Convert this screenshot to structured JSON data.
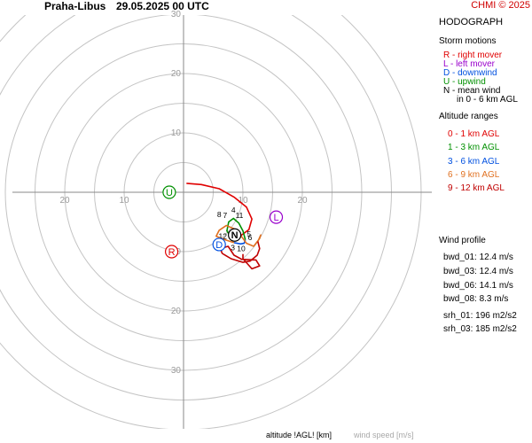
{
  "header": {
    "station": "Praha-Libus",
    "datetime": "29.05.2025 00 UTC",
    "credit": "CHMI © 2025"
  },
  "legend": {
    "title": "HODOGRAPH",
    "storm_motions": {
      "title": "Storm motions",
      "items": [
        {
          "text": "R - right mover",
          "color": "#e00000"
        },
        {
          "text": "L - left mover",
          "color": "#9900cc"
        },
        {
          "text": "D - downwind",
          "color": "#0050e0"
        },
        {
          "text": "U - upwind",
          "color": "#009000"
        },
        {
          "text": "N - mean wind",
          "color": "#000000"
        },
        {
          "text": "in 0 - 6 km AGL",
          "color": "#000000"
        }
      ]
    },
    "altitude_ranges": {
      "title": "Altitude ranges",
      "items": [
        {
          "text": "0 - 1 km AGL",
          "color": "#e00000"
        },
        {
          "text": "1 - 3 km AGL",
          "color": "#009000"
        },
        {
          "text": "3 - 6 km AGL",
          "color": "#0050e0"
        },
        {
          "text": "6 - 9 km AGL",
          "color": "#e07020"
        },
        {
          "text": "9 - 12 km AGL",
          "color": "#c00000"
        }
      ]
    }
  },
  "wind_profile": {
    "title": "Wind profile",
    "bwd": [
      "bwd_01: 12.4 m/s",
      "bwd_03: 12.4 m/s",
      "bwd_06: 14.1 m/s",
      "bwd_08: 8.3 m/s"
    ],
    "srh": [
      "srh_01: 196 m2/s2",
      "srh_03: 185 m2/s2"
    ]
  },
  "footer": {
    "altitude_label": "altitude !AGL! [km]",
    "speed_label": "wind speed [m/s]"
  },
  "chart_data": {
    "type": "line",
    "title": "HODOGRAPH",
    "xlabel": "",
    "ylabel": "",
    "xlim": [
      -28,
      28
    ],
    "ylim": [
      -40,
      30
    ],
    "rings": [
      5,
      10,
      15,
      20,
      25,
      30,
      35,
      40
    ],
    "x_tick_labels": [
      {
        "x": -20,
        "text": "20"
      },
      {
        "x": -10,
        "text": "10"
      },
      {
        "x": 10,
        "text": "10"
      },
      {
        "x": 20,
        "text": "20"
      }
    ],
    "y_tick_labels": [
      {
        "y": 30,
        "text": "30"
      },
      {
        "y": 20,
        "text": "20"
      },
      {
        "y": 10,
        "text": "10"
      },
      {
        "y": -10,
        "text": "10"
      },
      {
        "y": -20,
        "text": "20"
      },
      {
        "y": -30,
        "text": "30"
      }
    ],
    "series": [
      {
        "color": "#e00000",
        "points": [
          [
            0.5,
            1.5
          ],
          [
            3,
            1.3
          ],
          [
            6,
            0.6
          ],
          [
            8.5,
            -0.8
          ],
          [
            10.6,
            -2.5
          ],
          [
            11.5,
            -4.5
          ],
          [
            11,
            -6.3
          ],
          [
            9.5,
            -7.4
          ],
          [
            8,
            -7.6
          ]
        ]
      },
      {
        "color": "#009000",
        "points": [
          [
            8,
            -7.6
          ],
          [
            7.3,
            -6.5
          ],
          [
            7.6,
            -5
          ],
          [
            8.4,
            -4.4
          ],
          [
            9.3,
            -5.2
          ],
          [
            10,
            -6.5
          ],
          [
            10.4,
            -8
          ]
        ]
      },
      {
        "color": "#0050e0",
        "points": [
          [
            10.4,
            -8
          ],
          [
            10.2,
            -8.6
          ],
          [
            9.6,
            -8.7
          ],
          [
            8.5,
            -8.5
          ]
        ]
      },
      {
        "color": "#e07020",
        "points": [
          [
            8.5,
            -8.5
          ],
          [
            7,
            -8
          ],
          [
            5.5,
            -7.4
          ],
          [
            6,
            -6.4
          ],
          [
            7.2,
            -5.6
          ],
          [
            8.6,
            -6.2
          ],
          [
            9.8,
            -7.5
          ],
          [
            10.6,
            -8.6
          ],
          [
            11.8,
            -9.1
          ],
          [
            12.8,
            -7.8
          ],
          [
            13,
            -7.2
          ],
          [
            12.5,
            -8.3
          ]
        ]
      },
      {
        "color": "#c00000",
        "points": [
          [
            12.5,
            -8.3
          ],
          [
            12.8,
            -9.5
          ],
          [
            12.4,
            -10.6
          ],
          [
            11.2,
            -11.6
          ],
          [
            10,
            -11.8
          ],
          [
            8,
            -11.2
          ],
          [
            6.5,
            -10.3
          ],
          [
            6.2,
            -9.5
          ],
          [
            7.5,
            -9.1
          ],
          [
            8.5,
            -10.6
          ],
          [
            9.8,
            -11.3
          ],
          [
            12.2,
            -11.4
          ],
          [
            12.8,
            -12.4
          ],
          [
            11.5,
            -12.9
          ],
          [
            10,
            -11.2
          ],
          [
            10,
            -10.4
          ]
        ]
      }
    ],
    "height_labels": [
      {
        "text": "4",
        "x": 8.4,
        "y": -3.0
      },
      {
        "text": "8",
        "x": 6.0,
        "y": -3.7
      },
      {
        "text": "7",
        "x": 7.0,
        "y": -3.9
      },
      {
        "text": "11",
        "x": 9.4,
        "y": -3.9
      },
      {
        "text": "1",
        "x": 8.0,
        "y": -7.0
      },
      {
        "text": "12",
        "x": 6.6,
        "y": -7.4
      },
      {
        "text": "9",
        "x": 6.6,
        "y": -8.7
      },
      {
        "text": "5",
        "x": 11.0,
        "y": -7.0
      },
      {
        "text": "6",
        "x": 11.2,
        "y": -7.6
      },
      {
        "text": "10",
        "x": 9.7,
        "y": -9.5
      },
      {
        "text": "3",
        "x": 8.3,
        "y": -9.3
      },
      {
        "text": "2",
        "x": 9.4,
        "y": -7.2
      }
    ],
    "storm_motions": [
      {
        "label": "R",
        "x": -2.0,
        "y": -10.0,
        "color": "#e00000"
      },
      {
        "label": "L",
        "x": 15.6,
        "y": -4.2,
        "color": "#9900cc"
      },
      {
        "label": "D",
        "x": 6.0,
        "y": -8.8,
        "color": "#0050e0"
      },
      {
        "label": "U",
        "x": -2.4,
        "y": 0.0,
        "color": "#009000"
      },
      {
        "label": "N",
        "x": 8.6,
        "y": -7.2,
        "color": "#000000"
      }
    ]
  }
}
